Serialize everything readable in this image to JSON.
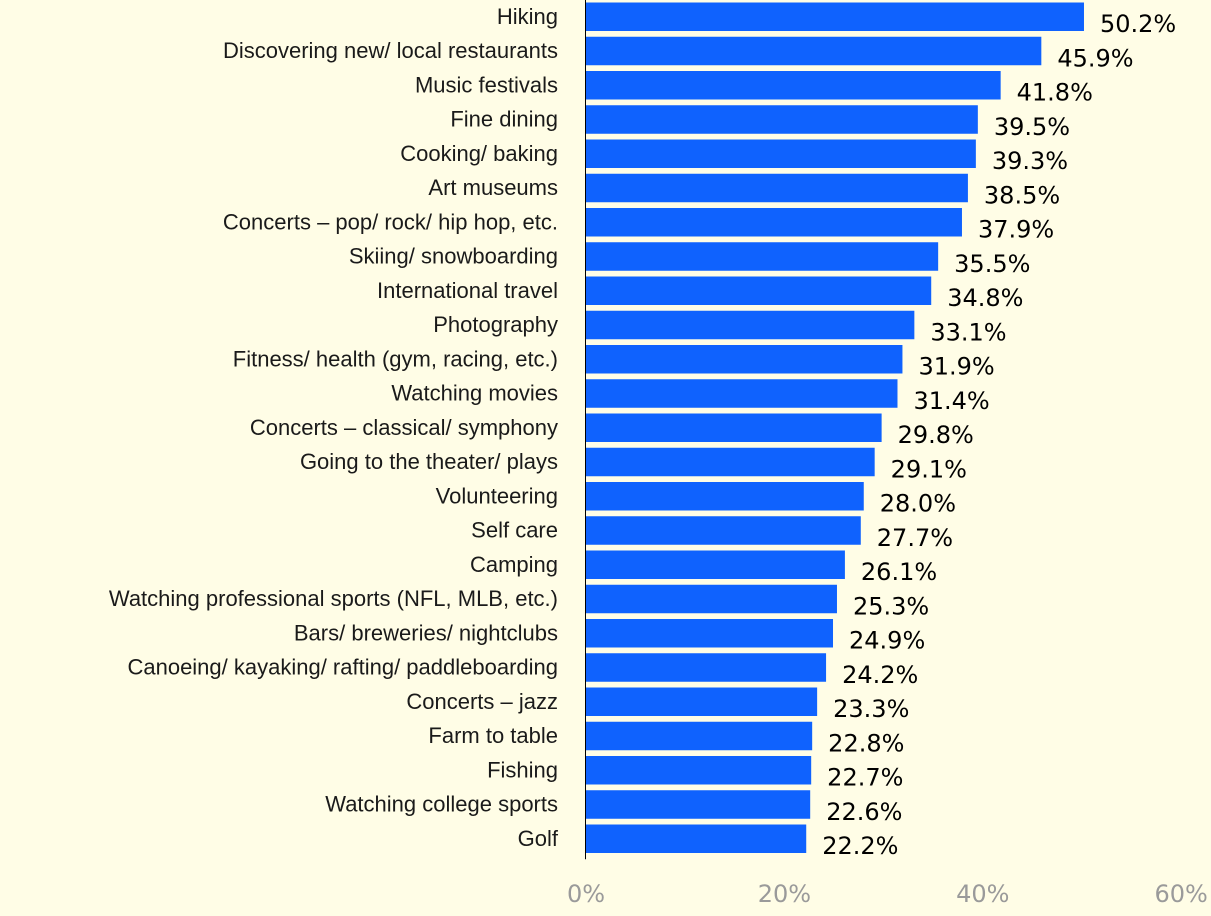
{
  "colors": {
    "background": "#fffde6",
    "bar": "#0f62fe",
    "axis_line": "#000000",
    "tick_text": "#9a9a9a"
  },
  "chart_data": {
    "type": "bar",
    "orientation": "horizontal",
    "title": "",
    "xlabel": "",
    "ylabel": "",
    "xlim": [
      0,
      60
    ],
    "x_ticks": [
      "0%",
      "20%",
      "40%",
      "60%"
    ],
    "grid": false,
    "legend": "none",
    "categories": [
      "Hiking",
      "Discovering new/ local restaurants",
      "Music festivals",
      "Fine dining",
      "Cooking/ baking",
      "Art museums",
      "Concerts – pop/ rock/ hip hop, etc.",
      "Skiing/ snowboarding",
      "International travel",
      "Photography",
      "Fitness/ health (gym, racing, etc.)",
      "Watching movies",
      "Concerts – classical/ symphony",
      "Going to the theater/ plays",
      "Volunteering",
      "Self care",
      "Camping",
      "Watching professional sports (NFL, MLB, etc.)",
      "Bars/ breweries/ nightclubs",
      "Canoeing/ kayaking/ rafting/ paddleboarding",
      "Concerts – jazz",
      "Farm to table",
      "Fishing",
      "Watching college sports",
      "Golf"
    ],
    "values": [
      50.2,
      45.9,
      41.8,
      39.5,
      39.3,
      38.5,
      37.9,
      35.5,
      34.8,
      33.1,
      31.9,
      31.4,
      29.8,
      29.1,
      28.0,
      27.7,
      26.1,
      25.3,
      24.9,
      24.2,
      23.3,
      22.8,
      22.7,
      22.6,
      22.2
    ],
    "value_labels": [
      "50.2%",
      "45.9%",
      "41.8%",
      "39.5%",
      "39.3%",
      "38.5%",
      "37.9%",
      "35.5%",
      "34.8%",
      "33.1%",
      "31.9%",
      "31.4%",
      "29.8%",
      "29.1%",
      "28.0%",
      "27.7%",
      "26.1%",
      "25.3%",
      "24.9%",
      "24.2%",
      "23.3%",
      "22.8%",
      "22.7%",
      "22.6%",
      "22.2%"
    ]
  }
}
